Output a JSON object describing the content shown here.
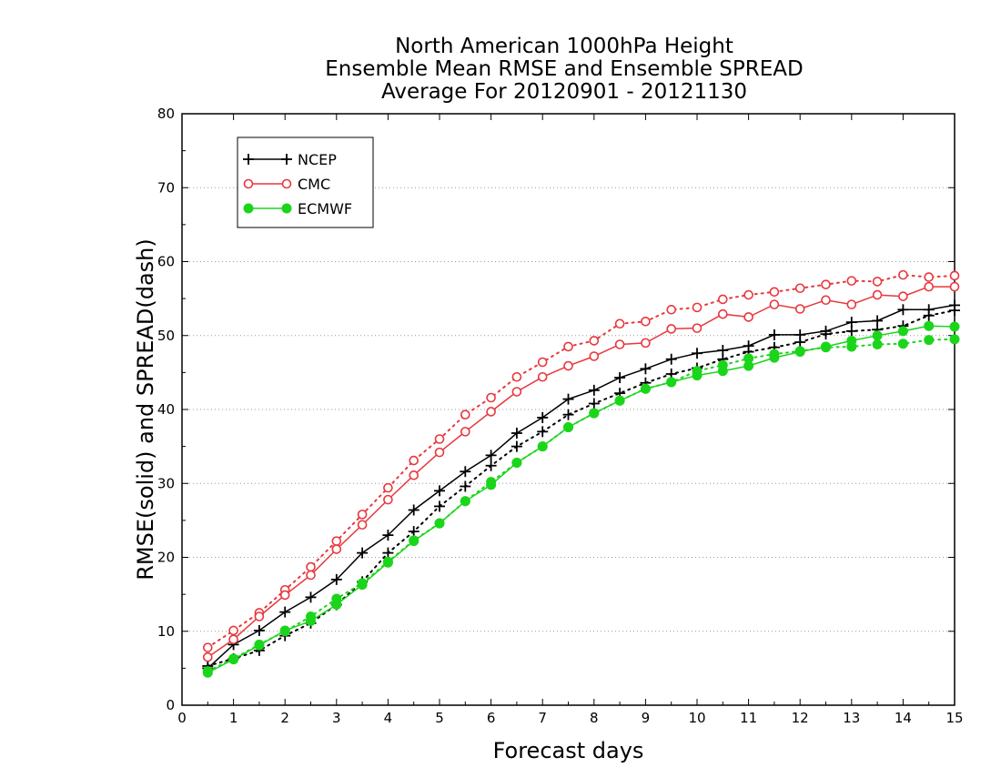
{
  "chart_data": {
    "type": "line",
    "title": [
      "North American 1000hPa Height",
      "Ensemble Mean RMSE and Ensemble SPREAD",
      "Average For 20120901 - 20121130"
    ],
    "xlabel": "Forecast days",
    "ylabel": "RMSE(solid) and SPREAD(dash)",
    "xlim": [
      0,
      15
    ],
    "ylim": [
      0,
      80
    ],
    "x_ticks": [
      0,
      1,
      2,
      3,
      4,
      5,
      6,
      7,
      8,
      9,
      10,
      11,
      12,
      13,
      14,
      15
    ],
    "y_ticks": [
      0,
      10,
      20,
      30,
      40,
      50,
      60,
      70,
      80
    ],
    "grid": "horizontal dotted",
    "legend_position": "top-left",
    "x": [
      0.5,
      1,
      1.5,
      2,
      2.5,
      3,
      3.5,
      4,
      4.5,
      5,
      5.5,
      6,
      6.5,
      7,
      7.5,
      8,
      8.5,
      9,
      9.5,
      10,
      10.5,
      11,
      11.5,
      12,
      12.5,
      13,
      13.5,
      14,
      14.5,
      15
    ],
    "series": [
      {
        "name": "NCEP",
        "color": "#000000",
        "marker": "plus",
        "rmse": [
          5.0,
          8.2,
          10.1,
          12.6,
          14.6,
          17.0,
          20.6,
          23.0,
          26.4,
          29.0,
          31.6,
          33.8,
          36.8,
          38.9,
          41.4,
          42.6,
          44.3,
          45.5,
          46.8,
          47.6,
          48.0,
          48.6,
          50.1,
          50.1,
          50.6,
          51.8,
          52.0,
          53.5,
          53.5,
          54.1
        ],
        "spread": [
          5.3,
          6.3,
          7.4,
          9.4,
          11.1,
          13.6,
          16.7,
          20.6,
          23.5,
          26.9,
          29.6,
          32.4,
          35.0,
          37.0,
          39.3,
          40.8,
          42.2,
          43.6,
          44.8,
          45.6,
          46.8,
          47.8,
          48.4,
          49.1,
          50.2,
          50.6,
          50.8,
          51.3,
          52.7,
          53.4
        ]
      },
      {
        "name": "CMC",
        "color": "#e8373c",
        "marker": "open-circle",
        "rmse": [
          6.5,
          8.9,
          12.0,
          14.9,
          17.6,
          21.1,
          24.4,
          27.8,
          31.1,
          34.2,
          37.0,
          39.7,
          42.4,
          44.4,
          45.9,
          47.2,
          48.8,
          49.0,
          50.9,
          51.0,
          52.9,
          52.5,
          54.2,
          53.6,
          54.8,
          54.2,
          55.5,
          55.3,
          56.6,
          56.6
        ],
        "spread": [
          7.8,
          10.1,
          12.5,
          15.6,
          18.7,
          22.2,
          25.8,
          29.4,
          33.1,
          36.0,
          39.3,
          41.6,
          44.4,
          46.4,
          48.5,
          49.3,
          51.6,
          51.9,
          53.5,
          53.8,
          54.9,
          55.5,
          55.9,
          56.4,
          56.9,
          57.4,
          57.3,
          58.2,
          57.9,
          58.1
        ]
      },
      {
        "name": "ECMWF",
        "color": "#1bd51b",
        "marker": "filled-circle",
        "rmse": [
          4.4,
          6.2,
          8.1,
          10.1,
          11.4,
          13.6,
          16.3,
          19.3,
          22.2,
          24.6,
          27.6,
          29.8,
          32.8,
          35.0,
          37.6,
          39.5,
          41.2,
          42.8,
          43.7,
          44.6,
          45.2,
          45.9,
          47.0,
          47.8,
          48.5,
          49.3,
          50.0,
          50.6,
          51.3,
          51.2
        ],
        "spread": [
          4.6,
          6.3,
          8.2,
          10.0,
          12.0,
          14.4,
          16.5,
          19.4,
          22.3,
          24.6,
          27.6,
          30.2,
          32.8,
          35.0,
          37.6,
          39.5,
          41.2,
          42.8,
          43.7,
          45.2,
          46.0,
          46.9,
          47.5,
          47.9,
          48.4,
          48.5,
          48.8,
          48.9,
          49.4,
          49.5
        ]
      }
    ]
  }
}
